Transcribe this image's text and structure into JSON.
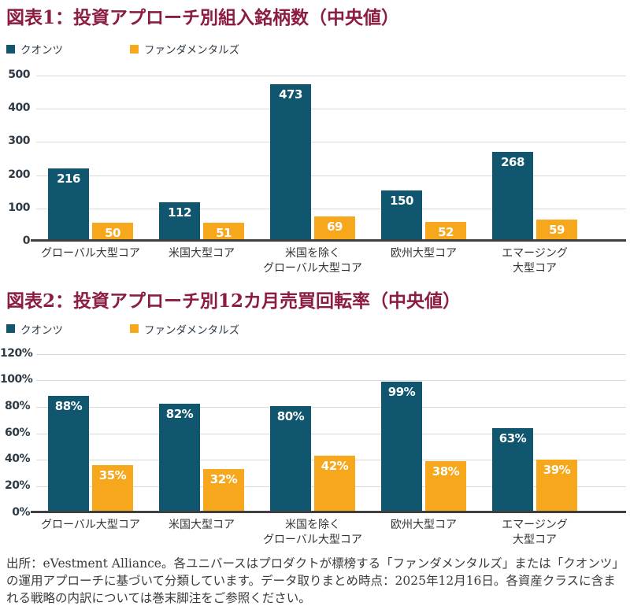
{
  "colors": {
    "quant": "#11566F",
    "fundamental": "#F7A71C",
    "title": "#8C1D40",
    "gridline": "#D9D9D9",
    "baseline": "#3F3F3F",
    "axis_text": "#2E3A45"
  },
  "chart_data": [
    {
      "type": "bar",
      "title": "図表1：投資アプローチ別組入銘柄数（中央値）",
      "categories": [
        "グローバル大型コア",
        "米国大型コア",
        "米国を除く\nグローバル大型コア",
        "欧州大型コア",
        "エマージング\n大型コア"
      ],
      "series": [
        {
          "name": "クオンツ",
          "values": [
            216,
            112,
            473,
            150,
            268
          ]
        },
        {
          "name": "ファンダメンタルズ",
          "values": [
            50,
            51,
            69,
            52,
            59
          ]
        }
      ],
      "xlabel": "",
      "ylabel": "",
      "ylim": [
        0,
        500
      ],
      "yticks": [
        500,
        400,
        300,
        200,
        100,
        0
      ],
      "tick_suffix": "",
      "value_suffix": "",
      "grid": true,
      "legend_position": "top-left"
    },
    {
      "type": "bar",
      "title": "図表2：投資アプローチ別12カ月売買回転率（中央値）",
      "categories": [
        "グローバル大型コア",
        "米国大型コア",
        "米国を除く\nグローバル大型コア",
        "欧州大型コア",
        "エマージング\n大型コア"
      ],
      "series": [
        {
          "name": "クオンツ",
          "values": [
            88,
            82,
            80,
            99,
            63
          ]
        },
        {
          "name": "ファンダメンタルズ",
          "values": [
            35,
            32,
            42,
            38,
            39
          ]
        }
      ],
      "xlabel": "",
      "ylabel": "",
      "ylim": [
        0,
        120
      ],
      "yticks": [
        120,
        100,
        80,
        60,
        40,
        20,
        0
      ],
      "tick_suffix": "%",
      "value_suffix": "%",
      "grid": true,
      "legend_position": "top-left"
    }
  ],
  "footer": {
    "text": "出所：eVestment Alliance。各ユニバースはプロダクトが標榜する「ファンダメンタルズ」または「クオンツ」の運用アプローチに基づいて分類しています。データ取りまとめ時点：2025年12月16日。各資産クラスに含まれる戦略の内訳については巻末脚注をご参照ください。"
  }
}
